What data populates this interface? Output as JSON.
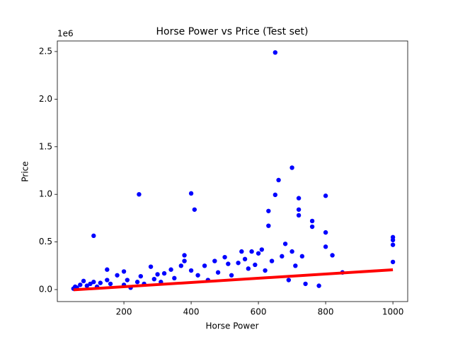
{
  "chart_data": {
    "type": "scatter",
    "title": "Horse Power vs Price (Test set)",
    "x_label": "Horse Power",
    "y_label": "Price",
    "y_offset_label": "1e6",
    "xlim": [
      2,
      1044
    ],
    "ylim": [
      -126000,
      2611000
    ],
    "xticks": [
      200,
      400,
      600,
      800,
      1000
    ],
    "yticks": [
      {
        "value": 0,
        "label": "0.0"
      },
      {
        "value": 500000,
        "label": "0.5"
      },
      {
        "value": 1000000,
        "label": "1.0"
      },
      {
        "value": 1500000,
        "label": "1.5"
      },
      {
        "value": 2000000,
        "label": "2.0"
      },
      {
        "value": 2500000,
        "label": "2.5"
      }
    ],
    "grid": false,
    "series": [
      {
        "type": "scatter",
        "color": "#0000ff",
        "x": [
          50,
          55,
          60,
          70,
          80,
          90,
          100,
          110,
          110,
          120,
          130,
          150,
          150,
          160,
          180,
          200,
          200,
          210,
          220,
          240,
          245,
          250,
          260,
          280,
          290,
          300,
          310,
          320,
          340,
          350,
          370,
          380,
          380,
          400,
          400,
          410,
          420,
          440,
          450,
          470,
          480,
          500,
          510,
          520,
          540,
          550,
          560,
          570,
          580,
          590,
          600,
          610,
          620,
          630,
          630,
          640,
          650,
          650,
          660,
          670,
          680,
          690,
          700,
          700,
          710,
          720,
          720,
          720,
          730,
          740,
          760,
          760,
          780,
          800,
          800,
          800,
          820,
          850,
          1000,
          1000,
          1000,
          1000
        ],
        "values": [
          10000,
          30000,
          20000,
          50000,
          90000,
          40000,
          60000,
          80000,
          565000,
          30000,
          70000,
          210000,
          100000,
          60000,
          150000,
          190000,
          50000,
          100000,
          20000,
          80000,
          1000000,
          140000,
          60000,
          240000,
          110000,
          160000,
          80000,
          170000,
          210000,
          120000,
          250000,
          360000,
          300000,
          1010000,
          200000,
          840000,
          150000,
          250000,
          100000,
          300000,
          180000,
          340000,
          270000,
          150000,
          280000,
          400000,
          320000,
          220000,
          400000,
          260000,
          380000,
          420000,
          200000,
          825000,
          670000,
          300000,
          2490000,
          995000,
          1150000,
          350000,
          480000,
          100000,
          1280000,
          400000,
          250000,
          960000,
          840000,
          780000,
          350000,
          60000,
          720000,
          660000,
          40000,
          985000,
          600000,
          450000,
          360000,
          180000,
          550000,
          520000,
          470000,
          290000
        ]
      },
      {
        "type": "line",
        "color": "#ff0000",
        "x": [
          50,
          1000
        ],
        "values": [
          -3000,
          208000
        ]
      }
    ]
  }
}
